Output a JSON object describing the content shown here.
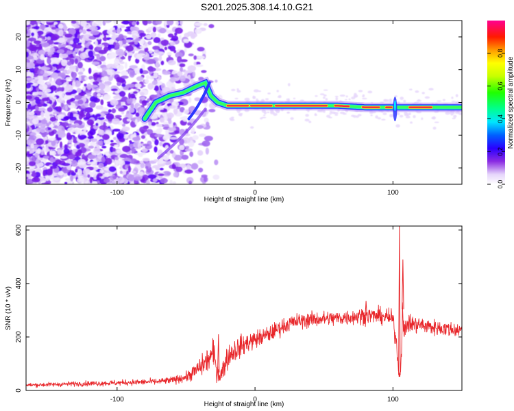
{
  "title": "S201.2025.308.14.10.G21",
  "colors": {
    "snr_line": "#e8262a",
    "spectrogram_low": "#e9dcfb",
    "spectrogram_mid": "#7a2ef5",
    "track_edge": "#1cf0c8",
    "track_core": "#f0283c"
  },
  "chart_data": [
    {
      "type": "heatmap",
      "name": "spectrogram",
      "xlabel": "Height of straight line (km)",
      "ylabel": "Frequency (Hz)",
      "xlim": [
        -166,
        150
      ],
      "ylim": [
        -25,
        25
      ],
      "xticks": [
        -100,
        0,
        100
      ],
      "yticks": [
        -20,
        -10,
        0,
        10,
        20
      ],
      "xtick_labels": [
        "-100",
        "0",
        "100"
      ],
      "ytick_labels": [
        "-20",
        "-10",
        "0",
        "10",
        "20"
      ],
      "grid": false,
      "signal_track": {
        "x": [
          -80,
          -72,
          -62,
          -52,
          -42,
          -36,
          -32,
          -27,
          -20,
          -12,
          0,
          20,
          40,
          60,
          80,
          100,
          110,
          130,
          150
        ],
        "freq": [
          -5,
          0,
          2,
          3,
          5,
          6,
          2,
          0,
          -1,
          -1,
          -1,
          -1,
          -1,
          -1,
          -1.5,
          -1.5,
          -1.5,
          -1.5,
          -1.5
        ]
      },
      "noise_extent": {
        "x_from": -166,
        "x_to": -25,
        "density": "high below -70 km, fading towards -25 km"
      },
      "colorbar": {
        "label": "Normalized spectral amplitude",
        "range": [
          0,
          1
        ],
        "ticks": [
          0.0,
          0.2,
          0.4,
          0.6,
          0.8
        ],
        "tick_labels": [
          "0.0",
          "0.2",
          "0.4",
          "0.6",
          "0.8"
        ],
        "colormap": "rainbow (white-violet-blue-cyan-green-yellow-orange-red-magenta)"
      }
    },
    {
      "type": "line",
      "name": "snr",
      "xlabel": "Height of straight line (km)",
      "ylabel": "SNR (10 * v/v)",
      "xlim": [
        -166,
        150
      ],
      "ylim": [
        0,
        615
      ],
      "xticks": [
        -100,
        0,
        100
      ],
      "yticks": [
        0,
        200,
        400,
        600
      ],
      "xtick_labels": [
        "-100",
        "0",
        "100"
      ],
      "ytick_labels": [
        "0",
        "200",
        "400",
        "600"
      ],
      "grid": false,
      "series": [
        {
          "name": "SNR",
          "x": [
            -166,
            -150,
            -130,
            -110,
            -90,
            -70,
            -60,
            -50,
            -45,
            -40,
            -35,
            -30,
            -28,
            -25,
            -22,
            -20,
            -15,
            -10,
            -5,
            0,
            5,
            10,
            15,
            20,
            25,
            30,
            40,
            50,
            60,
            70,
            80,
            90,
            95,
            100,
            103,
            104,
            105,
            106,
            107,
            108,
            110,
            120,
            130,
            140,
            150
          ],
          "y": [
            20,
            22,
            25,
            27,
            30,
            33,
            38,
            50,
            65,
            85,
            110,
            140,
            80,
            55,
            95,
            125,
            150,
            165,
            180,
            190,
            200,
            210,
            225,
            240,
            250,
            258,
            265,
            268,
            270,
            275,
            280,
            278,
            275,
            265,
            160,
            80,
            50,
            120,
            330,
            200,
            250,
            245,
            235,
            230,
            225
          ],
          "noise_amplitude": [
            8,
            9,
            10,
            11,
            12,
            13,
            15,
            20,
            30,
            40,
            50,
            60,
            45,
            40,
            45,
            50,
            50,
            45,
            40,
            38,
            36,
            35,
            34,
            33,
            32,
            32,
            32,
            32,
            32,
            33,
            34,
            34,
            34,
            36,
            40,
            30,
            20,
            30,
            60,
            50,
            40,
            35,
            33,
            32,
            32
          ]
        }
      ],
      "spikes": [
        {
          "x": 104.7,
          "y": 615
        },
        {
          "x": 107.2,
          "y": 490
        },
        {
          "x": -26.5,
          "y": 210
        },
        {
          "x": 80.5,
          "y": 335
        }
      ]
    }
  ]
}
